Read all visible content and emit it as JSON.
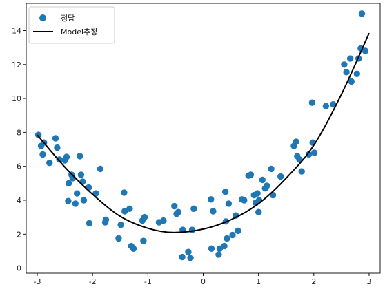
{
  "chart_data": {
    "type": "scatter",
    "xlim": [
      -3.2,
      3.2
    ],
    "ylim": [
      -0.3,
      15.6
    ],
    "xticks": [
      -3,
      -2,
      -1,
      0,
      1,
      2,
      3
    ],
    "yticks": [
      0,
      2,
      4,
      6,
      8,
      10,
      12,
      14
    ],
    "grid": false,
    "legend_placement": "top-left",
    "colors": {
      "points": "#1f77b4",
      "line": "#000000"
    },
    "series": [
      {
        "name": "정답",
        "type": "scatter",
        "points": [
          [
            -2.98,
            7.85
          ],
          [
            -2.93,
            7.2
          ],
          [
            -2.9,
            6.7
          ],
          [
            -2.88,
            7.4
          ],
          [
            -2.78,
            6.2
          ],
          [
            -2.67,
            7.65
          ],
          [
            -2.64,
            7.1
          ],
          [
            -2.6,
            6.4
          ],
          [
            -2.5,
            6.35
          ],
          [
            -2.47,
            6.55
          ],
          [
            -2.44,
            3.95
          ],
          [
            -2.43,
            5.0
          ],
          [
            -2.38,
            5.5
          ],
          [
            -2.36,
            5.3
          ],
          [
            -2.31,
            3.8
          ],
          [
            -2.28,
            4.4
          ],
          [
            -2.23,
            6.6
          ],
          [
            -2.21,
            5.5
          ],
          [
            -2.18,
            5.1
          ],
          [
            -2.16,
            4.0
          ],
          [
            -2.07,
            4.75
          ],
          [
            -2.06,
            2.65
          ],
          [
            -1.94,
            4.4
          ],
          [
            -1.86,
            5.85
          ],
          [
            -1.77,
            2.7
          ],
          [
            -1.76,
            2.85
          ],
          [
            -1.53,
            1.75
          ],
          [
            -1.49,
            2.55
          ],
          [
            -1.43,
            4.45
          ],
          [
            -1.42,
            3.35
          ],
          [
            -1.33,
            3.5
          ],
          [
            -1.3,
            1.3
          ],
          [
            -1.26,
            1.15
          ],
          [
            -1.1,
            2.8
          ],
          [
            -1.08,
            1.6
          ],
          [
            -1.06,
            3.0
          ],
          [
            -0.8,
            2.7
          ],
          [
            -0.72,
            2.8
          ],
          [
            -0.52,
            3.65
          ],
          [
            -0.48,
            3.2
          ],
          [
            -0.45,
            3.3
          ],
          [
            -0.38,
            0.65
          ],
          [
            -0.37,
            2.25
          ],
          [
            -0.27,
            0.95
          ],
          [
            -0.23,
            0.6
          ],
          [
            -0.2,
            2.25
          ],
          [
            -0.17,
            3.5
          ],
          [
            0.14,
            4.05
          ],
          [
            0.15,
            1.15
          ],
          [
            0.18,
            3.35
          ],
          [
            0.28,
            0.8
          ],
          [
            0.3,
            1.15
          ],
          [
            0.38,
            1.3
          ],
          [
            0.4,
            4.5
          ],
          [
            0.41,
            2.75
          ],
          [
            0.43,
            1.75
          ],
          [
            0.46,
            3.8
          ],
          [
            0.53,
            1.95
          ],
          [
            0.59,
            3.1
          ],
          [
            0.63,
            2.2
          ],
          [
            0.7,
            4.05
          ],
          [
            0.74,
            4.0
          ],
          [
            0.82,
            5.45
          ],
          [
            0.86,
            5.5
          ],
          [
            0.92,
            4.3
          ],
          [
            0.95,
            3.85
          ],
          [
            0.98,
            4.4
          ],
          [
            1.0,
            3.3
          ],
          [
            1.01,
            4.0
          ],
          [
            1.07,
            5.2
          ],
          [
            1.12,
            4.7
          ],
          [
            1.15,
            4.85
          ],
          [
            1.23,
            5.85
          ],
          [
            1.26,
            4.3
          ],
          [
            1.4,
            5.4
          ],
          [
            1.64,
            7.2
          ],
          [
            1.68,
            7.45
          ],
          [
            1.7,
            6.6
          ],
          [
            1.74,
            6.4
          ],
          [
            1.78,
            5.7
          ],
          [
            1.91,
            6.7
          ],
          [
            1.97,
            9.75
          ],
          [
            1.98,
            7.4
          ],
          [
            2.01,
            6.8
          ],
          [
            2.22,
            9.55
          ],
          [
            2.35,
            9.65
          ],
          [
            2.55,
            12.0
          ],
          [
            2.59,
            11.55
          ],
          [
            2.66,
            12.35
          ],
          [
            2.68,
            11.0
          ],
          [
            2.78,
            11.45
          ],
          [
            2.81,
            12.35
          ],
          [
            2.85,
            12.95
          ],
          [
            2.87,
            15.0
          ],
          [
            2.93,
            12.8
          ]
        ]
      },
      {
        "name": "Model추정",
        "type": "line",
        "points": [
          [
            -3.0,
            7.85
          ],
          [
            -2.5,
            5.95
          ],
          [
            -2.0,
            4.35
          ],
          [
            -1.5,
            3.05
          ],
          [
            -1.0,
            2.35
          ],
          [
            -0.55,
            2.1
          ],
          [
            0.0,
            2.3
          ],
          [
            0.5,
            2.85
          ],
          [
            1.0,
            3.8
          ],
          [
            1.5,
            5.3
          ],
          [
            2.0,
            7.25
          ],
          [
            2.5,
            10.25
          ],
          [
            3.0,
            13.85
          ]
        ]
      }
    ]
  }
}
